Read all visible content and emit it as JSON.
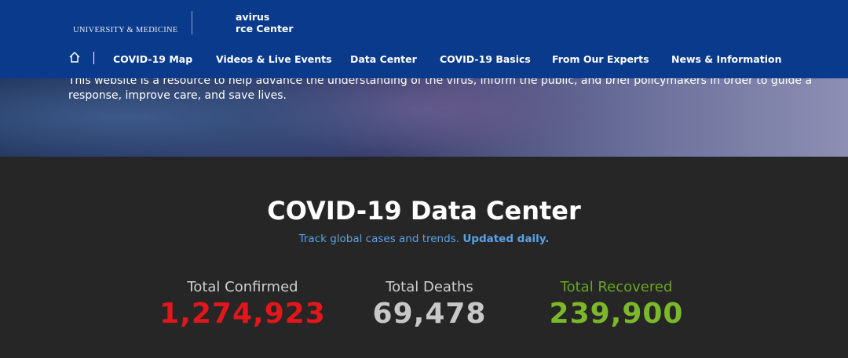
{
  "header": {
    "logo_text": "UNIVERSITY & MEDICINE",
    "center_name_line1": "avirus",
    "center_name_line2": "rce Center"
  },
  "nav": {
    "items": [
      "COVID-19 Map",
      "Videos & Live Events",
      "Data Center",
      "COVID-19 Basics",
      "From Our Experts",
      "News & Information"
    ]
  },
  "banner": {
    "line1": "This website is a resource to help advance the understanding of the virus, inform the public, and brief policymakers in order to guide a",
    "line2": "response, improve care, and save lives."
  },
  "data_center": {
    "title": "COVID-19 Data Center",
    "subtitle": "Track global cases and trends.",
    "subtitle_emphasis": "Updated daily.",
    "stats": [
      {
        "label": "Total Confirmed",
        "value": "1,274,923"
      },
      {
        "label": "Total Deaths",
        "value": "69,478"
      },
      {
        "label": "Total Recovered",
        "value": "239,900"
      }
    ]
  }
}
